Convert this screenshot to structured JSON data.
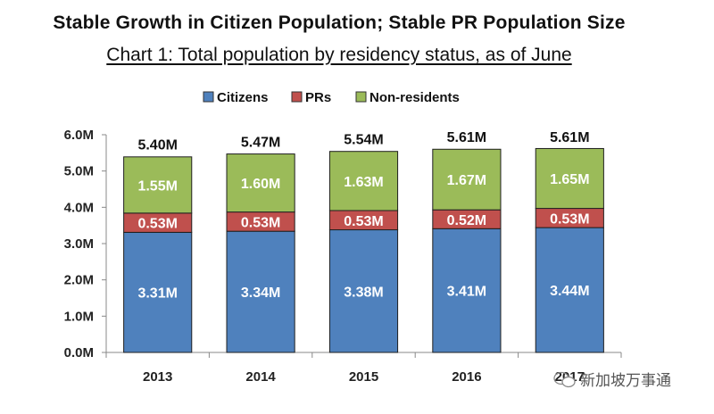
{
  "header": {
    "title": "Stable Growth in Citizen Population; Stable PR Population Size",
    "subtitle": "Chart 1: Total population by residency status, as of June"
  },
  "watermark": {
    "icon": "wechat-icon",
    "text": "新加坡万事通"
  },
  "chart_data": {
    "type": "bar",
    "stacked": true,
    "title": "Chart 1: Total population by residency status, as of June",
    "xlabel": "",
    "ylabel": "",
    "categories": [
      "2013",
      "2014",
      "2015",
      "2016",
      "2017"
    ],
    "series": [
      {
        "name": "Citizens",
        "color": "#4f81bd",
        "values": [
          3.31,
          3.34,
          3.38,
          3.41,
          3.44
        ],
        "labels": [
          "3.31M",
          "3.34M",
          "3.38M",
          "3.41M",
          "3.44M"
        ]
      },
      {
        "name": "PRs",
        "color": "#c0504d",
        "values": [
          0.53,
          0.53,
          0.53,
          0.52,
          0.53
        ],
        "labels": [
          "0.53M",
          "0.53M",
          "0.53M",
          "0.52M",
          "0.53M"
        ]
      },
      {
        "name": "Non-residents",
        "color": "#9bbb59",
        "values": [
          1.55,
          1.6,
          1.63,
          1.67,
          1.65
        ],
        "labels": [
          "1.55M",
          "1.60M",
          "1.63M",
          "1.67M",
          "1.65M"
        ]
      }
    ],
    "totals": [
      5.4,
      5.47,
      5.54,
      5.61,
      5.61
    ],
    "total_labels": [
      "5.40M",
      "5.47M",
      "5.54M",
      "5.61M",
      "5.61M"
    ],
    "ylim": [
      0,
      6.0
    ],
    "yticks": [
      0,
      1,
      2,
      3,
      4,
      5,
      6
    ],
    "ytick_labels": [
      "0.0M",
      "1.0M",
      "2.0M",
      "3.0M",
      "4.0M",
      "5.0M",
      "6.0M"
    ],
    "grid": false,
    "legend_position": "top-center"
  }
}
